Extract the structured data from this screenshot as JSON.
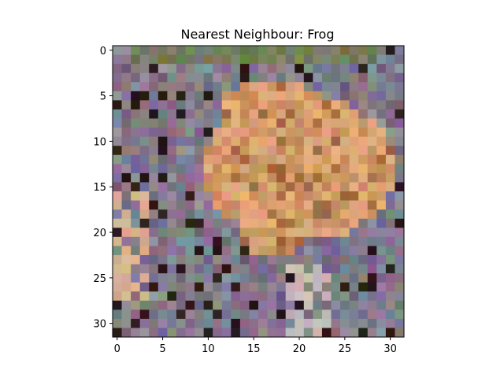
{
  "title": "Nearest Neighbour: Frog",
  "image": {
    "description": "Low-resolution 32x32 pixelated photo of a frog (tan/orange) sitting on gray-purple leaf litter",
    "grid_size": [
      32,
      32
    ],
    "palette": {
      "frog_light": "#e0a878",
      "frog_mid": "#c89060",
      "frog_dark": "#a06a40",
      "leaf_gray": "#8a8a96",
      "leaf_purple": "#7a6a80",
      "leaf_light": "#c8b8b8",
      "dark": "#2a1a18",
      "green": "#6a7a40",
      "sandy": "#d8b090"
    }
  },
  "axes": {
    "x_ticks": [
      "0",
      "5",
      "10",
      "15",
      "20",
      "25",
      "30"
    ],
    "y_ticks": [
      "0",
      "5",
      "10",
      "15",
      "20",
      "25",
      "30"
    ],
    "x_range": [
      -0.5,
      31.5
    ],
    "y_range": [
      -0.5,
      31.5
    ]
  }
}
